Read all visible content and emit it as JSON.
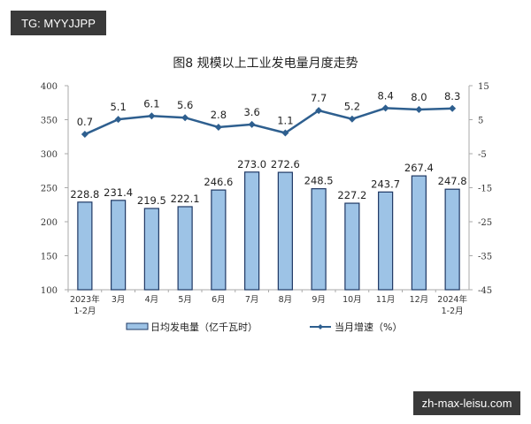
{
  "watermarks": {
    "top_left": "TG: MYYJJPP",
    "bottom_right": "zh-max-leisu.com"
  },
  "colors": {
    "bar_fill": "#9dc3e6",
    "bar_stroke": "#1f3864",
    "line": "#2e5f8f"
  },
  "chart_data": {
    "type": "bar+line",
    "title": "图8  规模以上工业发电量月度走势",
    "categories": [
      [
        "2023年",
        "1-2月"
      ],
      [
        "3月"
      ],
      [
        "4月"
      ],
      [
        "5月"
      ],
      [
        "6月"
      ],
      [
        "7月"
      ],
      [
        "8月"
      ],
      [
        "9月"
      ],
      [
        "10月"
      ],
      [
        "11月"
      ],
      [
        "12月"
      ],
      [
        "2024年",
        "1-2月"
      ]
    ],
    "series": [
      {
        "name": "日均发电量（亿千瓦时）",
        "type": "bar",
        "axis": "left",
        "values": [
          228.8,
          231.4,
          219.5,
          222.1,
          246.6,
          273.0,
          272.6,
          248.5,
          227.2,
          243.7,
          267.4,
          247.8
        ]
      },
      {
        "name": "当月增速（%）",
        "type": "line",
        "axis": "right",
        "values": [
          0.7,
          5.1,
          6.1,
          5.6,
          2.8,
          3.6,
          1.1,
          7.7,
          5.2,
          8.4,
          8.0,
          8.3
        ]
      }
    ],
    "left_axis": {
      "ylim": [
        100,
        400
      ],
      "ticks": [
        100,
        150,
        200,
        250,
        300,
        350,
        400
      ]
    },
    "right_axis": {
      "ylim": [
        -45,
        15
      ],
      "ticks": [
        -45,
        -35,
        -25,
        -15,
        -5,
        5,
        15
      ]
    },
    "grid": false,
    "legend": "bottom"
  }
}
